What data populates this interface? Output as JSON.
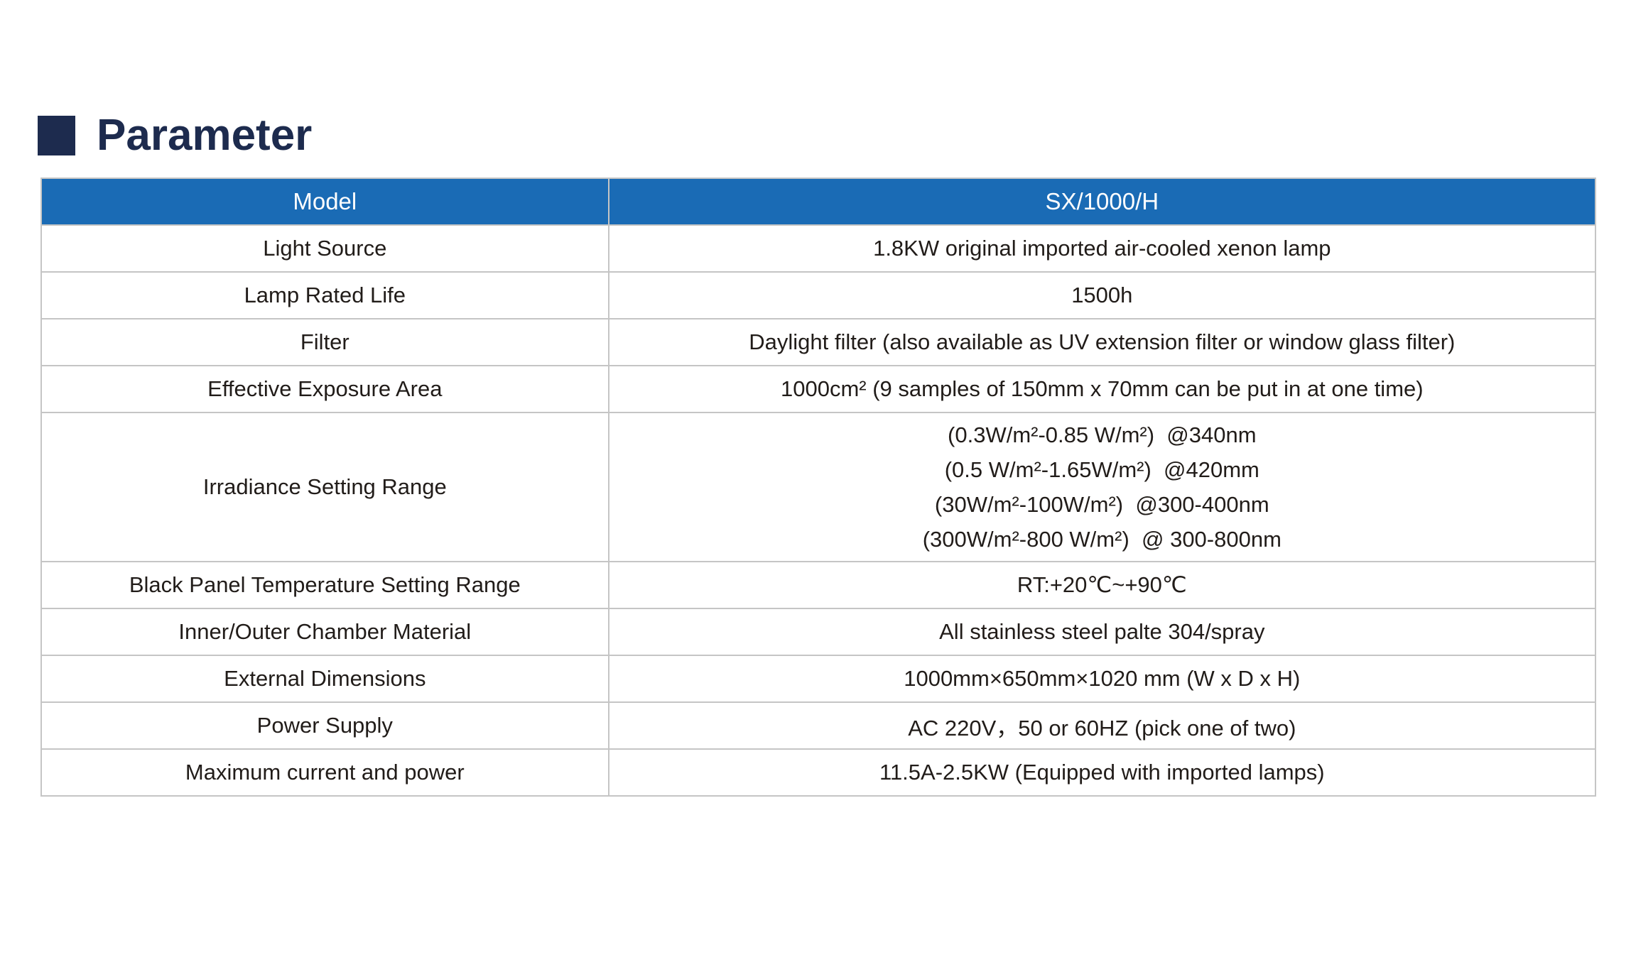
{
  "colors": {
    "heading_navy": "#1d2b4e",
    "header_blue": "#1a6bb5",
    "table_border_gray": "#c5c5c5",
    "body_text": "#211c19"
  },
  "heading": {
    "title": "Parameter"
  },
  "table": {
    "header": {
      "col1": "Model",
      "col2": "SX/1000/H"
    },
    "rows": [
      {
        "label": "Light Source",
        "value": "1.8KW original imported air-cooled xenon lamp"
      },
      {
        "label": "Lamp Rated Life",
        "value": "1500h"
      },
      {
        "label": "Filter",
        "value": "Daylight filter (also available as UV extension filter or window glass filter)"
      },
      {
        "label": "Effective Exposure Area",
        "value": "1000cm² (9 samples of 150mm x 70mm can be put in at one time)"
      },
      {
        "label": "Irradiance Setting Range",
        "value_lines": [
          "(0.3W/m²-0.85 W/m²)  @340nm",
          "(0.5 W/m²-1.65W/m²)  @420mm",
          "(30W/m²-100W/m²)  @300-400nm",
          "(300W/m²-800 W/m²)  @ 300-800nm"
        ]
      },
      {
        "label": "Black Panel Temperature Setting Range",
        "value": "RT:+20℃~+90℃"
      },
      {
        "label": "Inner/Outer Chamber Material",
        "value": "All stainless steel palte 304/spray"
      },
      {
        "label": "External Dimensions",
        "value": "1000mm×650mm×1020 mm (W x D x H)"
      },
      {
        "label": "Power Supply",
        "value": "AC 220V，50 or 60HZ (pick one of two)"
      },
      {
        "label": "Maximum current and power",
        "value": "11.5A-2.5KW (Equipped with imported lamps)"
      }
    ]
  }
}
